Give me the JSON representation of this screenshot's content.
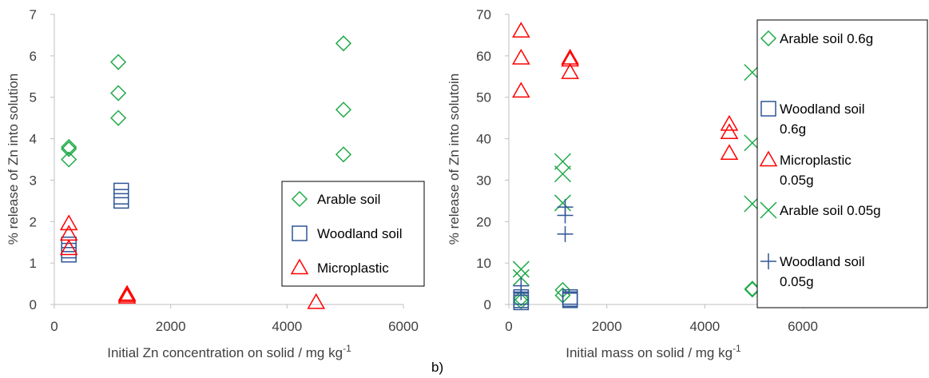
{
  "panel_labels": {
    "b": "b)"
  },
  "chart_data": [
    {
      "type": "scatter",
      "title": "",
      "xlabel": "Initial Zn concentration on solid / mg kg",
      "xlabel_superscript": "-1",
      "ylabel": "% release of Zn into solution",
      "xlim": [
        0,
        6000
      ],
      "ylim": [
        0,
        7
      ],
      "x_ticks": [
        "0",
        "2000",
        "4000",
        "6000"
      ],
      "y_ticks": [
        "0",
        "1",
        "2",
        "3",
        "4",
        "5",
        "6",
        "7"
      ],
      "x_tick_values": [
        0,
        2000,
        4000,
        6000
      ],
      "y_tick_values": [
        0,
        1,
        2,
        3,
        4,
        5,
        6,
        7
      ],
      "grid": false,
      "legend_placement": "lower-right",
      "series": [
        {
          "name": "Arable soil",
          "marker": "diamond",
          "color": "#1faa48",
          "points": [
            [
              250,
              3.8
            ],
            [
              250,
              3.75
            ],
            [
              250,
              3.5
            ],
            [
              1100,
              5.85
            ],
            [
              1100,
              5.1
            ],
            [
              1100,
              4.5
            ],
            [
              4970,
              6.3
            ],
            [
              4970,
              4.7
            ],
            [
              4970,
              3.62
            ]
          ]
        },
        {
          "name": "Woodland soil",
          "marker": "square",
          "color": "#2f5597",
          "points": [
            [
              250,
              1.45
            ],
            [
              250,
              1.3
            ],
            [
              250,
              1.2
            ],
            [
              1150,
              2.75
            ],
            [
              1150,
              2.6
            ],
            [
              1150,
              2.5
            ]
          ]
        },
        {
          "name": "Microplastic",
          "marker": "triangle",
          "color": "#ff0000",
          "points": [
            [
              250,
              1.95
            ],
            [
              250,
              1.7
            ],
            [
              250,
              1.35
            ],
            [
              1250,
              0.25
            ],
            [
              1250,
              0.22
            ],
            [
              1250,
              0.18
            ],
            [
              4500,
              0.05
            ]
          ]
        }
      ]
    },
    {
      "type": "scatter",
      "title": "",
      "xlabel": "Initial mass on solid / mg kg",
      "xlabel_superscript": "-1",
      "ylabel": "% release of Zn into solutoin",
      "xlim": [
        0,
        6000
      ],
      "ylim": [
        0,
        70
      ],
      "x_ticks": [
        "0",
        "2000",
        "4000",
        "6000"
      ],
      "y_ticks": [
        "0",
        "10",
        "20",
        "30",
        "40",
        "50",
        "60",
        "70"
      ],
      "x_tick_values": [
        0,
        2000,
        4000,
        6000
      ],
      "y_tick_values": [
        0,
        10,
        20,
        30,
        40,
        50,
        60,
        70
      ],
      "grid": false,
      "legend_placement": "right",
      "series": [
        {
          "name": "Arable soil 0.6g",
          "marker": "diamond",
          "color": "#1faa48",
          "points": [
            [
              250,
              1.5
            ],
            [
              250,
              0.8
            ],
            [
              1100,
              3.5
            ],
            [
              1100,
              2.2
            ],
            [
              4970,
              3.8
            ],
            [
              4970,
              3.6
            ]
          ]
        },
        {
          "name": "Woodland soil 0.6g",
          "marker": "square",
          "color": "#2f5597",
          "points": [
            [
              250,
              1.8
            ],
            [
              250,
              1.0
            ],
            [
              250,
              0.5
            ],
            [
              1250,
              1.8
            ],
            [
              1250,
              1.3
            ],
            [
              1250,
              1.0
            ]
          ]
        },
        {
          "name": "Microplastic 0.05g",
          "marker": "triangle",
          "color": "#ff0000",
          "points": [
            [
              250,
              66
            ],
            [
              250,
              59.5
            ],
            [
              250,
              51.5
            ],
            [
              1250,
              59.5
            ],
            [
              1250,
              59
            ],
            [
              1250,
              56
            ],
            [
              4500,
              43.5
            ],
            [
              4500,
              41.5
            ],
            [
              4500,
              36.5
            ]
          ]
        },
        {
          "name": "Arable soil 0.05g",
          "marker": "x",
          "color": "#1faa48",
          "points": [
            [
              250,
              8.5
            ],
            [
              250,
              6.5
            ],
            [
              1100,
              34.5
            ],
            [
              1100,
              31.5
            ],
            [
              1100,
              24.5
            ],
            [
              4970,
              56
            ],
            [
              4970,
              39
            ],
            [
              4970,
              24.3
            ]
          ]
        },
        {
          "name": "Woodland soil 0.05g",
          "marker": "plus",
          "color": "#2f5597",
          "points": [
            [
              250,
              4.5
            ],
            [
              250,
              3
            ],
            [
              1150,
              23.5
            ],
            [
              1150,
              21.5
            ],
            [
              1150,
              17
            ]
          ]
        }
      ]
    }
  ]
}
